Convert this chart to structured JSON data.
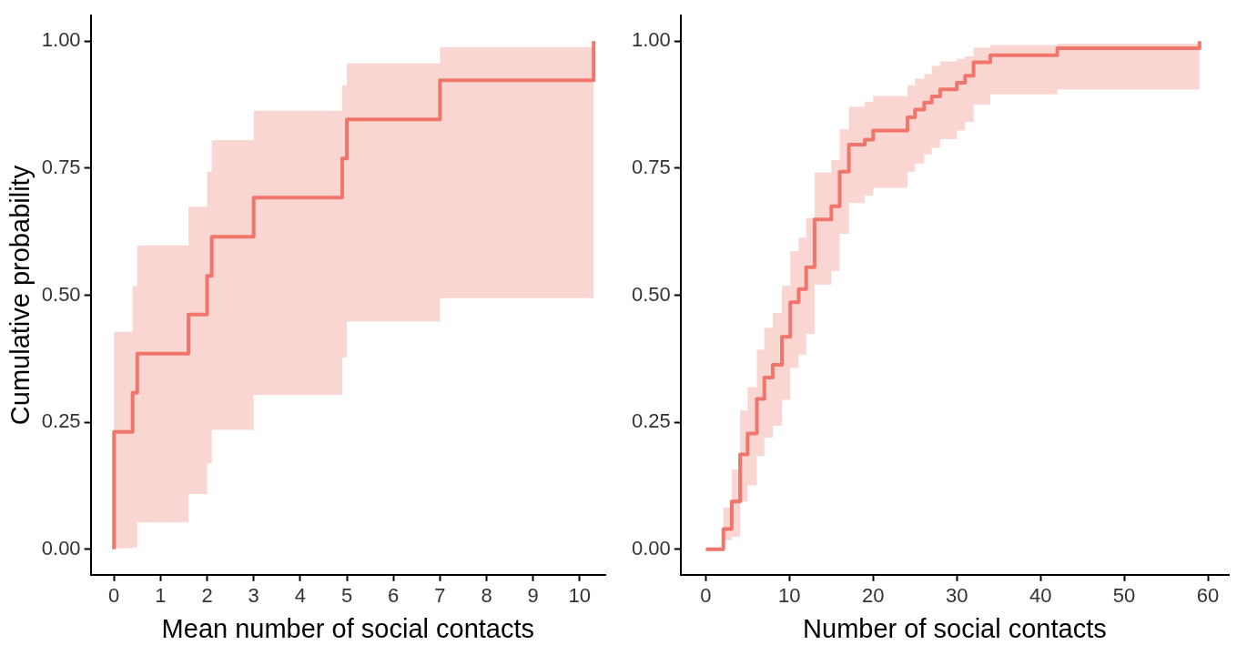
{
  "chart_data": [
    {
      "type": "step",
      "xlabel": "Mean number of social contacts",
      "ylabel": "Cumulative probability",
      "xlim": [
        -0.5,
        10.55
      ],
      "xticks": [
        0,
        1,
        2,
        3,
        4,
        5,
        6,
        7,
        8,
        9,
        10
      ],
      "ylim": [
        -0.05,
        1.05
      ],
      "yticks": [
        {
          "value": 0,
          "label": "0.00"
        },
        {
          "value": 0.25,
          "label": "0.25"
        },
        {
          "value": 0.5,
          "label": "0.50"
        },
        {
          "value": 0.75,
          "label": "0.75"
        },
        {
          "value": 1,
          "label": "1.00"
        }
      ],
      "series": [
        {
          "color": "#f0766c",
          "x": [
            0,
            0,
            0.4,
            0.5,
            1.6,
            2.0,
            2.1,
            3.0,
            4.9,
            5.0,
            7.0,
            10.3
          ],
          "values": [
            0,
            0.231,
            0.308,
            0.385,
            0.462,
            0.538,
            0.615,
            0.692,
            0.769,
            0.846,
            0.923,
            1.0
          ],
          "lower": [
            0.002,
            0.002,
            0.004,
            0.053,
            0.109,
            0.169,
            0.235,
            0.304,
            0.377,
            0.448,
            0.494,
            0.494
          ],
          "upper": [
            0.428,
            0.428,
            0.518,
            0.598,
            0.674,
            0.743,
            0.805,
            0.863,
            0.913,
            0.956,
            0.988,
            0.988
          ]
        }
      ]
    },
    {
      "type": "step",
      "xlabel": "Number of social contacts",
      "xlim": [
        -3,
        62.5
      ],
      "xticks": [
        0,
        10,
        20,
        30,
        40,
        50,
        60
      ],
      "ylim": [
        -0.05,
        1.05
      ],
      "yticks": [
        {
          "value": 0,
          "label": "0.00"
        },
        {
          "value": 0.25,
          "label": "0.25"
        },
        {
          "value": 0.5,
          "label": "0.50"
        },
        {
          "value": 0.75,
          "label": "0.75"
        },
        {
          "value": 1,
          "label": "1.00"
        }
      ],
      "series": [
        {
          "color": "#f0766c",
          "x": [
            0,
            2.1,
            3.1,
            4.1,
            5.0,
            6.1,
            7.0,
            8.0,
            9.1,
            10.1,
            11.1,
            12.0,
            13.0,
            15.0,
            16.0,
            17.1,
            19.0,
            20.0,
            24.1,
            25.0,
            26.1,
            27.0,
            28.0,
            30.0,
            31.0,
            32.0,
            34.0,
            42.0,
            59.0
          ],
          "values": [
            0,
            0.04,
            0.094,
            0.187,
            0.228,
            0.296,
            0.338,
            0.363,
            0.418,
            0.486,
            0.512,
            0.555,
            0.649,
            0.675,
            0.743,
            0.796,
            0.806,
            0.824,
            0.85,
            0.865,
            0.879,
            0.891,
            0.905,
            0.918,
            0.932,
            0.958,
            0.972,
            0.986,
            1.0
          ],
          "lower": [
            null,
            0.018,
            0.025,
            0.094,
            0.126,
            0.184,
            0.22,
            0.243,
            0.294,
            0.357,
            0.383,
            0.424,
            0.521,
            0.548,
            0.621,
            0.681,
            0.696,
            0.711,
            0.743,
            0.759,
            0.777,
            0.79,
            0.807,
            0.824,
            0.841,
            0.875,
            0.895,
            0.905,
            0.905
          ],
          "upper": [
            null,
            0.082,
            0.157,
            0.273,
            0.319,
            0.393,
            0.436,
            0.465,
            0.519,
            0.587,
            0.613,
            0.652,
            0.741,
            0.766,
            0.826,
            0.871,
            0.881,
            0.892,
            0.913,
            0.926,
            0.935,
            0.951,
            0.96,
            0.965,
            0.97,
            0.987,
            0.992,
            0.995,
            0.995
          ]
        }
      ]
    }
  ]
}
